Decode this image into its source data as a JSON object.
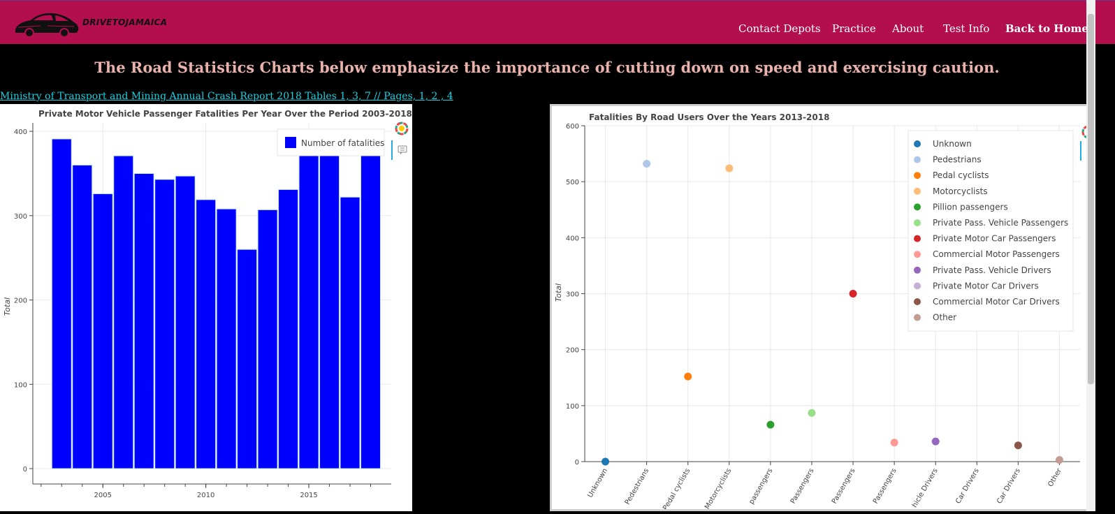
{
  "header": {
    "brand": "DRIVETOJAMAICA",
    "logo_icon": "car-icon",
    "nav": [
      {
        "label": "Contact Depots"
      },
      {
        "label": "Practice"
      },
      {
        "label": "About"
      },
      {
        "label": "Test Info"
      },
      {
        "label": "Back to Home"
      }
    ],
    "color": "#b30e4e"
  },
  "headline": "The Road Statistics Charts below emphasize the importance of cutting down on speed and exercising caution.",
  "source_link": "Ministry of Transport and Mining Annual Crash Report 2018 Tables 1, 3, 7 // Pages, 1, 2 , 4",
  "chart_data": [
    {
      "type": "bar",
      "title": "Private Motor Vehicle Passenger Fatalities Per Year Over the Period 2003-2018",
      "ylabel": "Total",
      "xlabel": "",
      "x": [
        2003,
        2004,
        2005,
        2006,
        2007,
        2008,
        2009,
        2010,
        2011,
        2012,
        2013,
        2014,
        2015,
        2016,
        2017,
        2018
      ],
      "values": [
        391,
        360,
        326,
        371,
        350,
        343,
        347,
        319,
        308,
        260,
        307,
        331,
        380,
        379,
        322,
        384
      ],
      "xticks": [
        2005,
        2010,
        2015
      ],
      "yticks": [
        0,
        100,
        200,
        300,
        400
      ],
      "ylim": [
        0,
        410
      ],
      "xlim": [
        2001.6,
        2019.0
      ],
      "legend": {
        "label": "Number of fatalities",
        "placement": "top-right"
      },
      "color": "#0000ff",
      "grid": true
    },
    {
      "type": "scatter",
      "title": "Fatalities By Road Users Over the Years 2013-2018",
      "ylabel": "Total",
      "xlabel": "",
      "ylim": [
        0,
        600
      ],
      "yticks": [
        0,
        100,
        200,
        300,
        400,
        500,
        600
      ],
      "categories": [
        "Unknown",
        "Pedestrians",
        "Pedal cyclists",
        "Motorcyclists",
        "Pillion passengers",
        "Private Pass. Vehicle Passengers",
        "Private Motor Car Passengers",
        "Commercial Motor Passengers",
        "Private Pass. Vehicle Drivers",
        "Private Motor Car Drivers",
        "Commercial Motor Car Drivers",
        "Other"
      ],
      "tick_labels": [
        "Unknown",
        "Pedestrians",
        "Pedal cyclists",
        "Motorcyclists",
        "passengers",
        "Passengers",
        "Passengers",
        "Passengers",
        "hicle Drivers",
        "Car Drivers",
        "Car Drivers",
        "Other"
      ],
      "values": [
        0,
        532,
        152,
        524,
        66,
        87,
        300,
        34,
        36,
        0,
        29,
        3
      ],
      "shown": [
        true,
        true,
        true,
        true,
        true,
        true,
        true,
        true,
        true,
        false,
        true,
        true
      ],
      "colors": [
        "#1f77b4",
        "#aec7e8",
        "#ff7f0e",
        "#ffbb78",
        "#2ca02c",
        "#98df8a",
        "#d62728",
        "#ff9896",
        "#9467bd",
        "#c5b0d5",
        "#8c564b",
        "#c49c94"
      ],
      "legend": {
        "placement": "top-right"
      },
      "grid": true
    }
  ]
}
